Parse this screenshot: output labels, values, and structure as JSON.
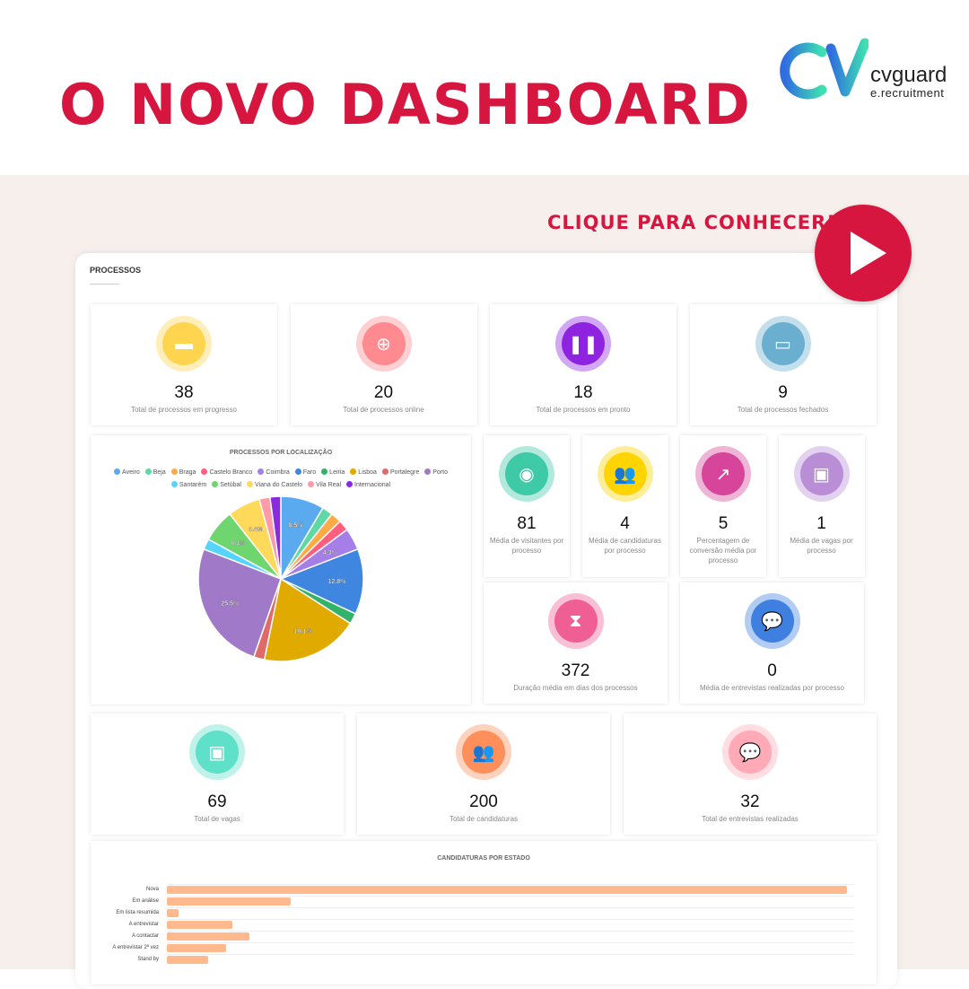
{
  "headline": "O NOVO DASHBOARD",
  "logo": {
    "brand": "cvguard",
    "sub": "e.recruitment"
  },
  "cta": "CLIQUE PARA CONHECER!",
  "colors": {
    "accent": "#d6163f",
    "bar": "#ffb98c"
  },
  "section_title": "PROCESSOS",
  "top_cards": [
    {
      "value": "38",
      "label": "Total de processos em progresso",
      "icon": "folder-icon",
      "color": "#ffd54f"
    },
    {
      "value": "20",
      "label": "Total de processos online",
      "icon": "globe-icon",
      "color": "#ff8a8f"
    },
    {
      "value": "18",
      "label": "Total de processos em pronto",
      "icon": "pause-icon",
      "color": "#8e24e0"
    },
    {
      "value": "9",
      "label": "Total de processos fechados",
      "icon": "folder-open-icon",
      "color": "#6aaed0"
    }
  ],
  "avg_cards": [
    {
      "value": "81",
      "label": "Média de visitantes por processo",
      "icon": "eye-icon",
      "color": "#3ec9a7"
    },
    {
      "value": "4",
      "label": "Média de candidaturas por processo",
      "icon": "users-icon",
      "color": "#ffd400"
    },
    {
      "value": "5",
      "label": "Percentagem de conversão média por processo",
      "icon": "chart-line-icon",
      "color": "#d6459a"
    },
    {
      "value": "1",
      "label": "Média de vagas por processo",
      "icon": "briefcase-icon",
      "color": "#b98ed6"
    }
  ],
  "wide_cards": [
    {
      "value": "372",
      "label": "Duração média em dias dos processos",
      "icon": "hourglass-icon",
      "color": "#ef5f93"
    },
    {
      "value": "0",
      "label": "Média de entrevistas realizadas por processo",
      "icon": "comments-icon",
      "color": "#3f7fe0"
    }
  ],
  "bottom_cards": [
    {
      "value": "69",
      "label": "Total de vagas",
      "icon": "briefcase-icon",
      "color": "#5fe0c8"
    },
    {
      "value": "200",
      "label": "Total de candidaturas",
      "icon": "users-icon",
      "color": "#ff8f5a"
    },
    {
      "value": "32",
      "label": "Total de entrevistas realizadas",
      "icon": "comments-icon",
      "color": "#ffaab6"
    }
  ],
  "chart_data": [
    {
      "type": "pie",
      "title": "PROCESSOS POR LOCALIZAÇÃO",
      "legend": "top",
      "categories": [
        "Aveiro",
        "Beja",
        "Braga",
        "Castelo Branco",
        "Coimbra",
        "Faro",
        "Leiria",
        "Lisboa",
        "Portalegre",
        "Porto",
        "Santarém",
        "Setúbal",
        "Viana do Castelo",
        "Vila Real",
        "Internacional"
      ],
      "values": [
        8.5,
        2.1,
        2.1,
        2.1,
        4.3,
        12.8,
        2.1,
        19.1,
        2.1,
        25.5,
        2.1,
        6.4,
        6.4,
        2.1,
        2.1
      ],
      "labels": [
        "8.5%",
        "",
        "",
        "",
        "4.3%",
        "12.8%",
        "",
        "19.1%",
        "",
        "25.5%",
        "",
        "6.4%",
        "6.4%",
        "",
        ""
      ],
      "colors": [
        "#5aaaf0",
        "#5fd8a5",
        "#ffaa44",
        "#ff5f7e",
        "#a67ee8",
        "#3f86e0",
        "#33b36a",
        "#e0aa00",
        "#e06a6a",
        "#a07ac8",
        "#55d4ff",
        "#6fd66f",
        "#ffd95a",
        "#ff9aa8",
        "#8a2be2"
      ]
    },
    {
      "type": "bar",
      "orientation": "horizontal",
      "title": "CANDIDATURAS POR ESTADO",
      "categories": [
        "Nova",
        "Em análise",
        "Em lista resumida",
        "A entrevistar",
        "A contactar",
        "A entrevistar 2ª vez",
        "Stand by"
      ],
      "values": [
        115,
        21,
        2,
        11,
        14,
        10,
        7
      ]
    }
  ]
}
